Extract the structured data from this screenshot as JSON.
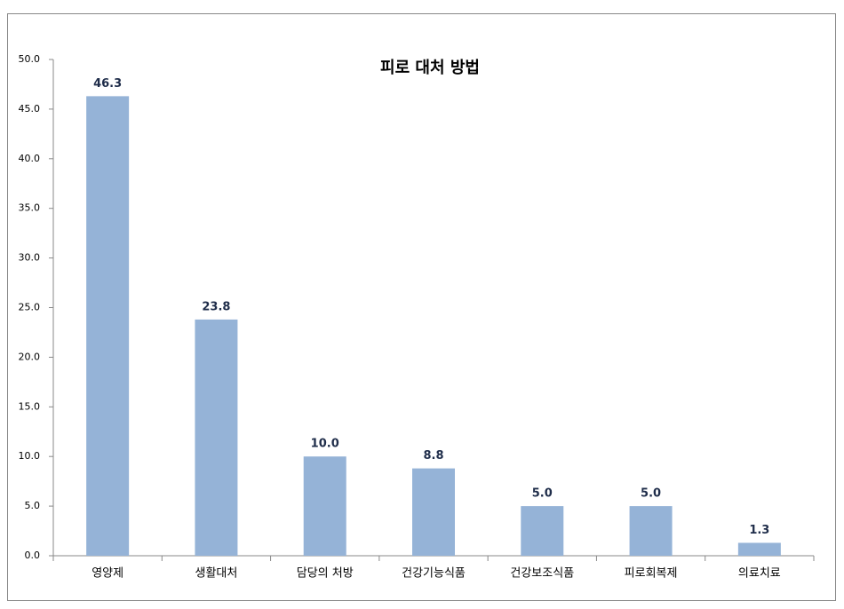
{
  "chart_data": {
    "type": "bar",
    "title": "피로 대처 방법",
    "categories": [
      "영양제",
      "생활대처",
      "담당의 처방",
      "건강기능식품",
      "건강보조식품",
      "피로회복제",
      "의료치료"
    ],
    "values": [
      46.3,
      23.8,
      10.0,
      8.8,
      5.0,
      5.0,
      1.3
    ],
    "value_labels": [
      "46.3",
      "23.8",
      "10.0",
      "8.8",
      "5.0",
      "5.0",
      "1.3"
    ],
    "color": "#95b3d7",
    "ylim": [
      0,
      50
    ],
    "yticks": [
      {
        "value": 0,
        "label": "0.0"
      },
      {
        "value": 5,
        "label": "5.0"
      },
      {
        "value": 10,
        "label": "10.0"
      },
      {
        "value": 15,
        "label": "15.0"
      },
      {
        "value": 20,
        "label": "20.0"
      },
      {
        "value": 25,
        "label": "25.0"
      },
      {
        "value": 30,
        "label": "30.0"
      },
      {
        "value": 35,
        "label": "35.0"
      },
      {
        "value": 40,
        "label": "40.0"
      },
      {
        "value": 45,
        "label": "45.0"
      },
      {
        "value": 50,
        "label": "50.0"
      }
    ],
    "grid": false
  }
}
